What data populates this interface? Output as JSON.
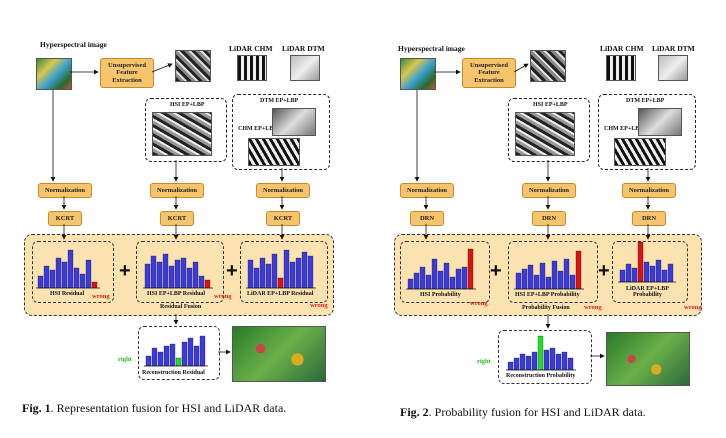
{
  "figures": [
    {
      "caption_label": "Fig. 1",
      "caption_text": ". Representation fusion for HSI and LiDAR data.",
      "hsi_title": "Hyperspectral image",
      "lidar_chm": "LiDAR CHM",
      "lidar_dtm": "LiDAR DTM",
      "feature_extraction": "Unsupervised\nFeature\nExtraction",
      "hsi_eplbp": "HSI EP+LBP",
      "dtm_eplbp": "DTM EP+LBP",
      "chm_eplbp": "CHM EP+LBP",
      "normalization": "Normalization",
      "model": "KCRT",
      "band_labels": [
        "HSI Residual",
        "HSI EP+LBP Residual",
        "LiDAR EP+LBP Residual"
      ],
      "fusion_label": "Residual Fusion",
      "reconstruction_label": "Reconstruction Residual",
      "wrong": "wrong",
      "right": "right"
    },
    {
      "caption_label": "Fig. 2",
      "caption_text": ". Probability fusion for HSI and LiDAR data.",
      "hsi_title": "Hyperspectral image",
      "lidar_chm": "LiDAR CHM",
      "lidar_dtm": "LiDAR DTM",
      "feature_extraction": "Unsupervised\nFeature\nExtraction",
      "hsi_eplbp": "HSI EP+LBP",
      "dtm_eplbp": "DTM EP+LBP",
      "chm_eplbp": "CHM EP+LBP",
      "normalization": "Normalization",
      "model": "DRN",
      "band_labels": [
        "HSI Probability",
        "HSI EP+LBP Probability",
        "LiDAR EP+LBP\nProbability"
      ],
      "fusion_label": "Probability Fusion",
      "reconstruction_label": "Reconstruction Probability",
      "wrong": "wrong",
      "right": "right"
    }
  ],
  "colors": {
    "bar": "#3a3adf",
    "wrong_bar": "#e01010",
    "right_bar": "#22dd22",
    "orange": "#f6c46c",
    "band": "#fae3b0"
  }
}
